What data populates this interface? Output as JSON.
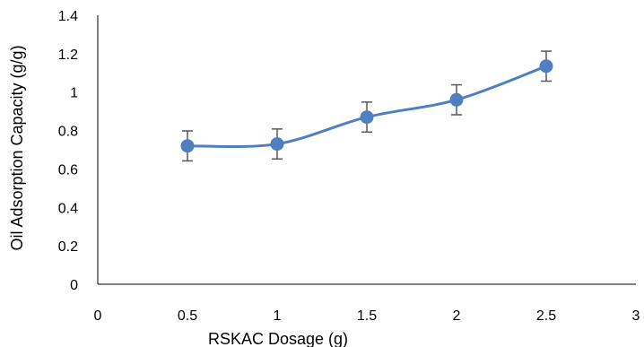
{
  "chart_data": {
    "type": "scatter",
    "title": "",
    "xlabel": "RSKAC Dosage (g)",
    "ylabel": "Oil Adsorption Capacity (g/g)",
    "xlim": [
      0,
      3
    ],
    "ylim": [
      0,
      1.4
    ],
    "xticks": [
      "0",
      "0.5",
      "1",
      "1.5",
      "2",
      "2.5",
      "3"
    ],
    "yticks": [
      "0",
      "0.2",
      "0.4",
      "0.6",
      "0.8",
      "1",
      "1.2",
      "1.4"
    ],
    "grid": false,
    "smoothed_line": true,
    "series": [
      {
        "x": [
          0.5,
          1.0,
          1.5,
          2.0,
          2.5
        ],
        "y": [
          0.72,
          0.73,
          0.87,
          0.96,
          1.135
        ],
        "error": [
          0.078,
          0.078,
          0.078,
          0.078,
          0.078
        ],
        "color": "#4e7fc0"
      }
    ],
    "error_bar_color": "#595959",
    "axis_color": "#000000"
  }
}
